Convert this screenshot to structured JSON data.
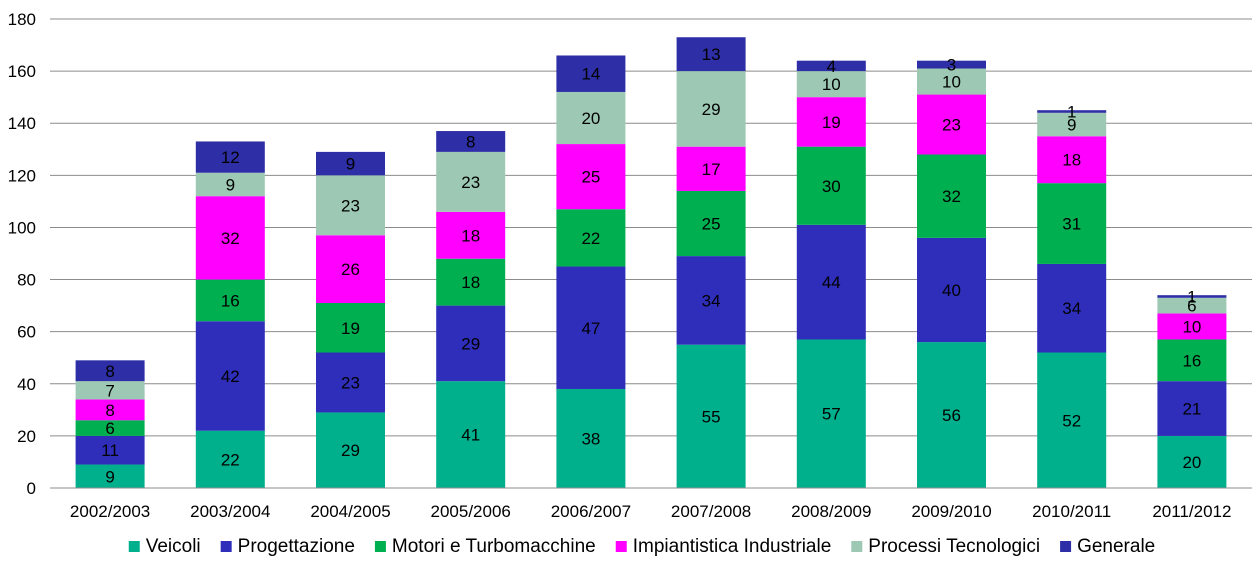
{
  "chart_data": {
    "type": "bar",
    "stacked": true,
    "categories": [
      "2002/2003",
      "2003/2004",
      "2004/2005",
      "2005/2006",
      "2006/2007",
      "2007/2008",
      "2008/2009",
      "2009/2010",
      "2010/2011",
      "2011/2012"
    ],
    "ylim": [
      0,
      180
    ],
    "yticks": [
      0,
      20,
      40,
      60,
      80,
      100,
      120,
      140,
      160,
      180
    ],
    "grid": true,
    "legend_position": "bottom",
    "series": [
      {
        "name": "Veicoli",
        "color": "#00b08c",
        "values": [
          9,
          22,
          29,
          41,
          38,
          55,
          57,
          56,
          52,
          20
        ]
      },
      {
        "name": "Progettazione",
        "color": "#2e2ebb",
        "values": [
          11,
          42,
          23,
          29,
          47,
          34,
          44,
          40,
          34,
          21
        ]
      },
      {
        "name": "Motori e Turbomacchine",
        "color": "#00b050",
        "values": [
          6,
          16,
          19,
          18,
          22,
          25,
          30,
          32,
          31,
          16
        ]
      },
      {
        "name": "Impiantistica Industriale",
        "color": "#ff00ff",
        "values": [
          8,
          32,
          26,
          18,
          25,
          17,
          19,
          23,
          18,
          10
        ]
      },
      {
        "name": "Processi Tecnologici",
        "color": "#9dc9b4",
        "values": [
          7,
          9,
          23,
          23,
          20,
          29,
          10,
          10,
          9,
          6
        ]
      },
      {
        "name": "Generale",
        "color": "#2e2ea6",
        "values": [
          8,
          12,
          9,
          8,
          14,
          13,
          4,
          3,
          1,
          1
        ]
      }
    ]
  }
}
